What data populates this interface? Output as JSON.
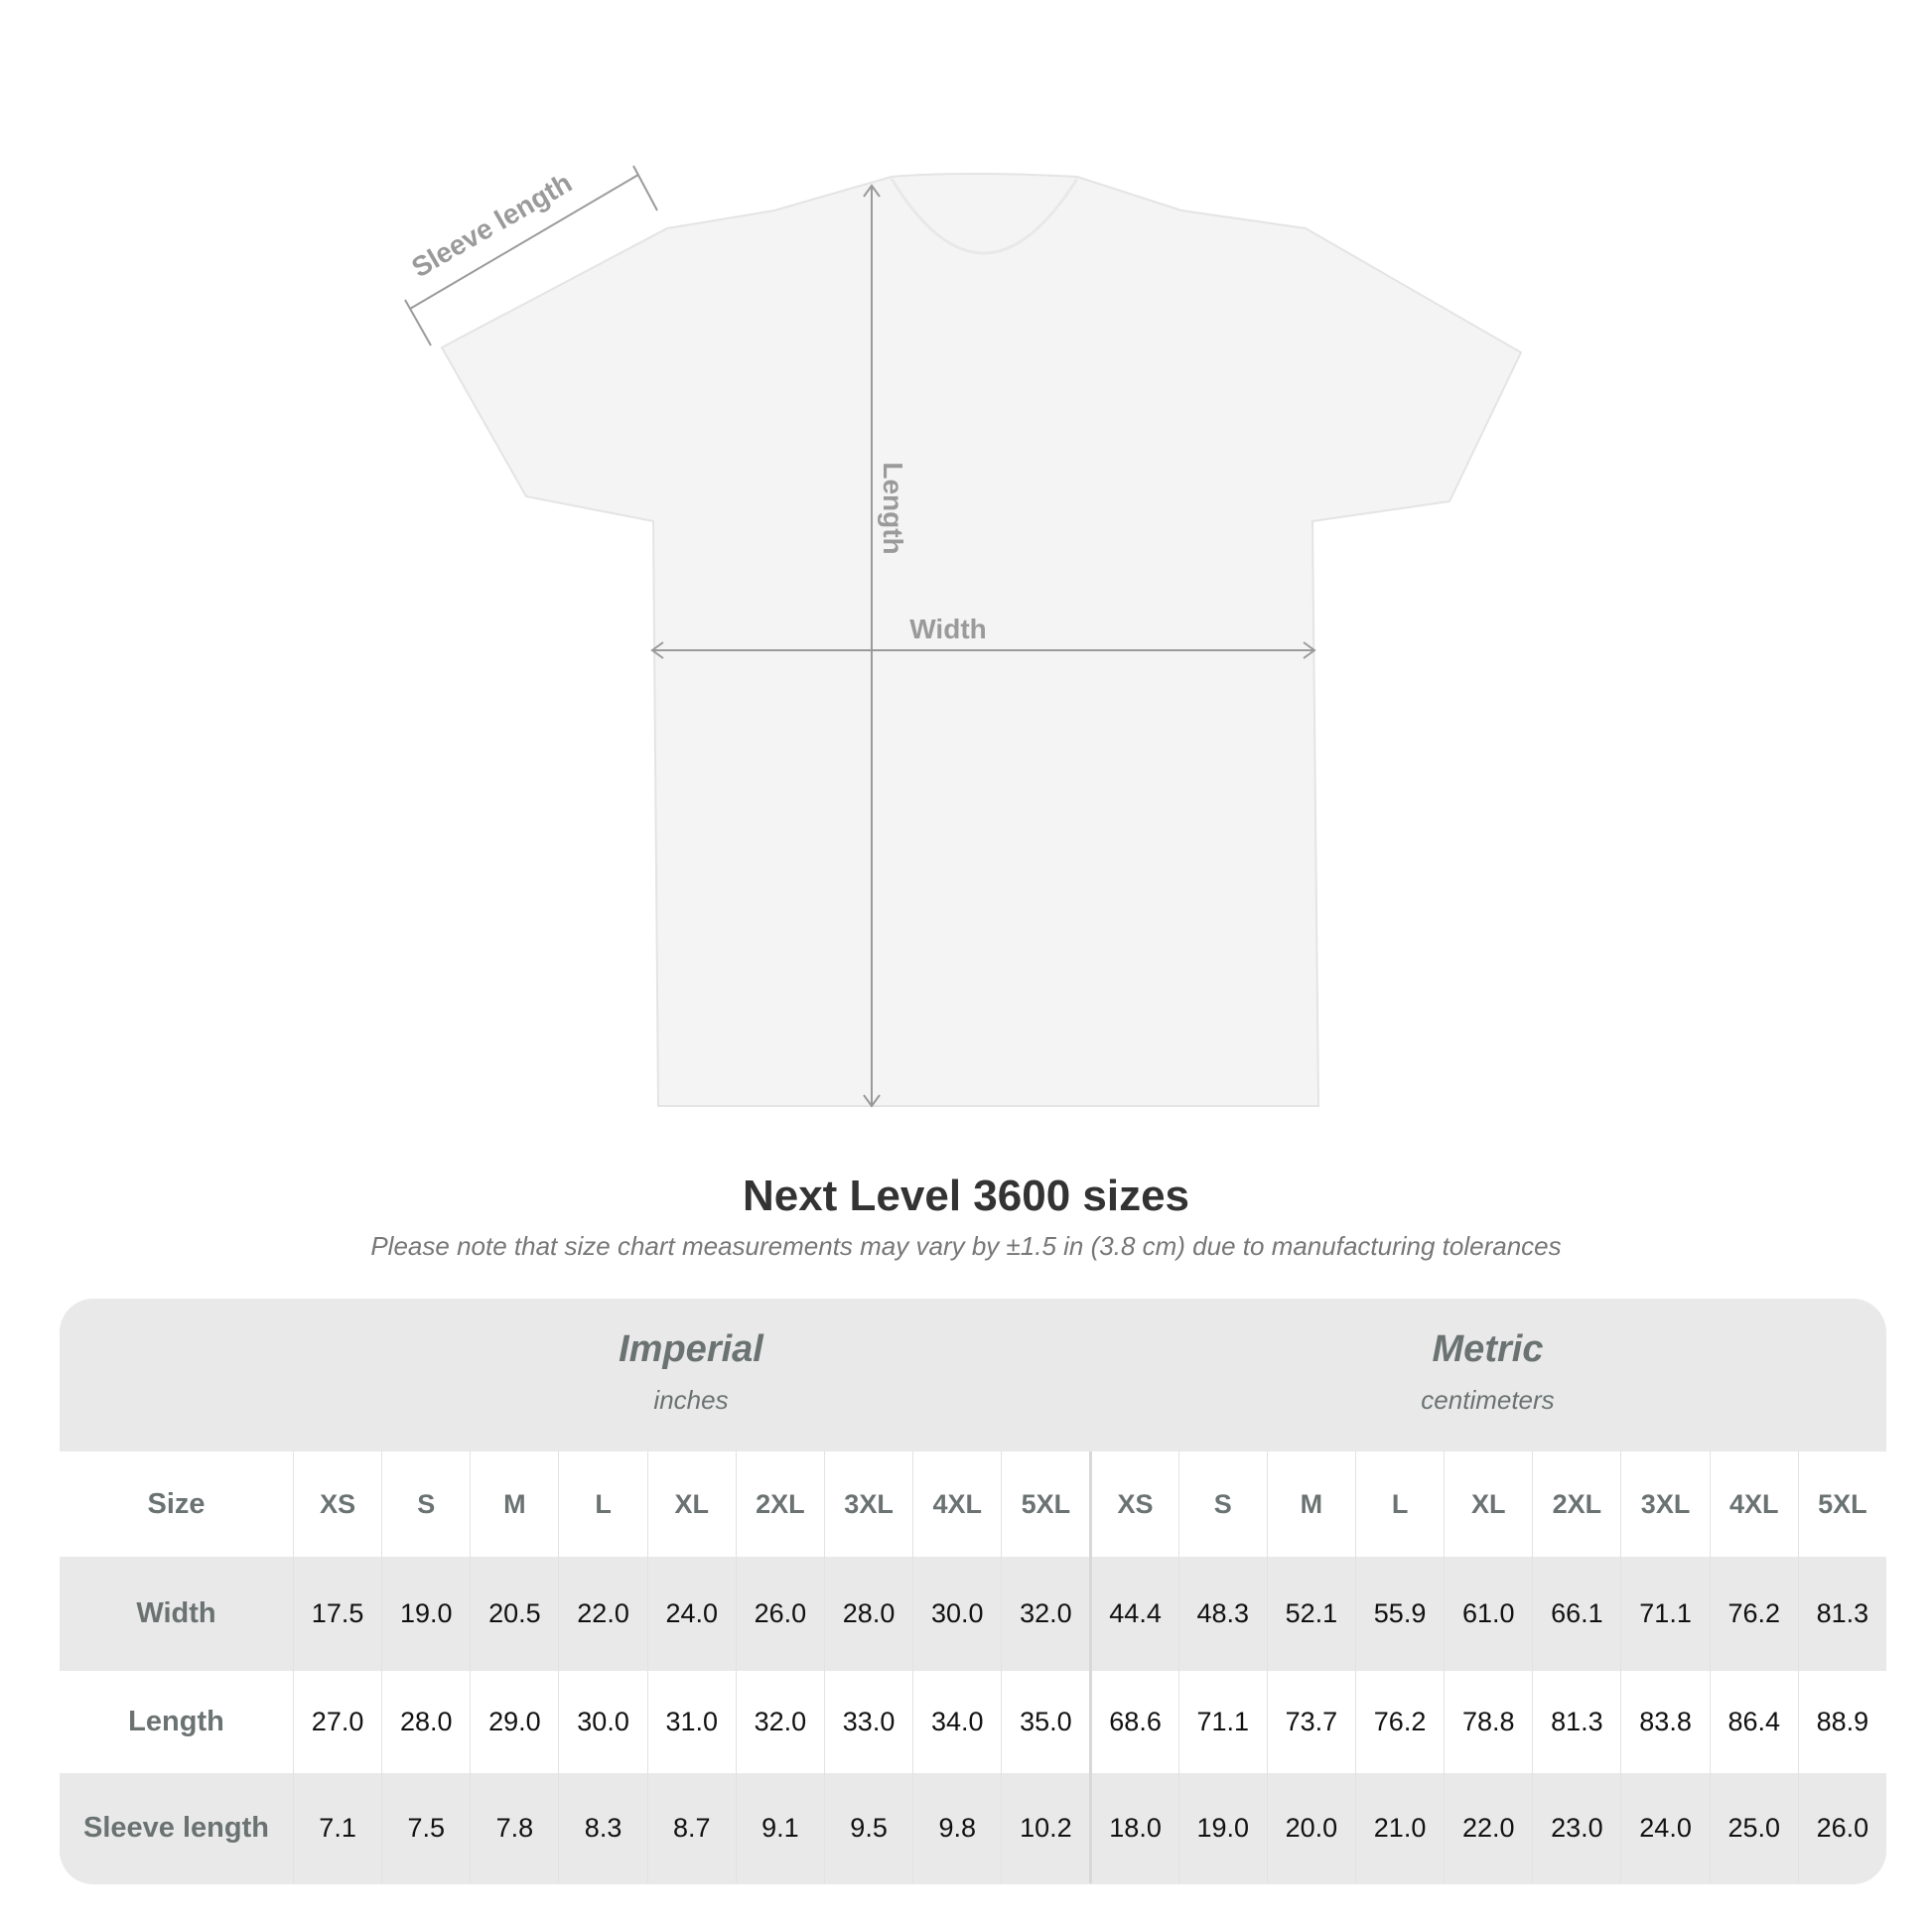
{
  "diagram": {
    "labels": {
      "sleeve": "Sleeve length",
      "length": "Length",
      "width": "Width"
    },
    "colors": {
      "shirt": "#f4f4f4",
      "lines": "#9a9a9a"
    }
  },
  "title": "Next Level 3600 sizes",
  "subtitle": "Please note that size chart measurements may vary by ±1.5 in (3.8 cm) due to manufacturing tolerances",
  "table": {
    "imperial": {
      "name": "Imperial",
      "unit": "inches"
    },
    "metric": {
      "name": "Metric",
      "unit": "centimeters"
    },
    "size_label": "Size",
    "sizes": [
      "XS",
      "S",
      "M",
      "L",
      "XL",
      "2XL",
      "3XL",
      "4XL",
      "5XL"
    ],
    "rows": [
      {
        "label": "Width",
        "imperial": [
          "17.5",
          "19.0",
          "20.5",
          "22.0",
          "24.0",
          "26.0",
          "28.0",
          "30.0",
          "32.0"
        ],
        "metric": [
          "44.4",
          "48.3",
          "52.1",
          "55.9",
          "61.0",
          "66.1",
          "71.1",
          "76.2",
          "81.3"
        ]
      },
      {
        "label": "Length",
        "imperial": [
          "27.0",
          "28.0",
          "29.0",
          "30.0",
          "31.0",
          "32.0",
          "33.0",
          "34.0",
          "35.0"
        ],
        "metric": [
          "68.6",
          "71.1",
          "73.7",
          "76.2",
          "78.8",
          "81.3",
          "83.8",
          "86.4",
          "88.9"
        ]
      },
      {
        "label": "Sleeve length",
        "imperial": [
          "7.1",
          "7.5",
          "7.8",
          "8.3",
          "8.7",
          "9.1",
          "9.5",
          "9.8",
          "10.2"
        ],
        "metric": [
          "18.0",
          "19.0",
          "20.0",
          "21.0",
          "22.0",
          "23.0",
          "24.0",
          "25.0",
          "26.0"
        ]
      }
    ]
  }
}
